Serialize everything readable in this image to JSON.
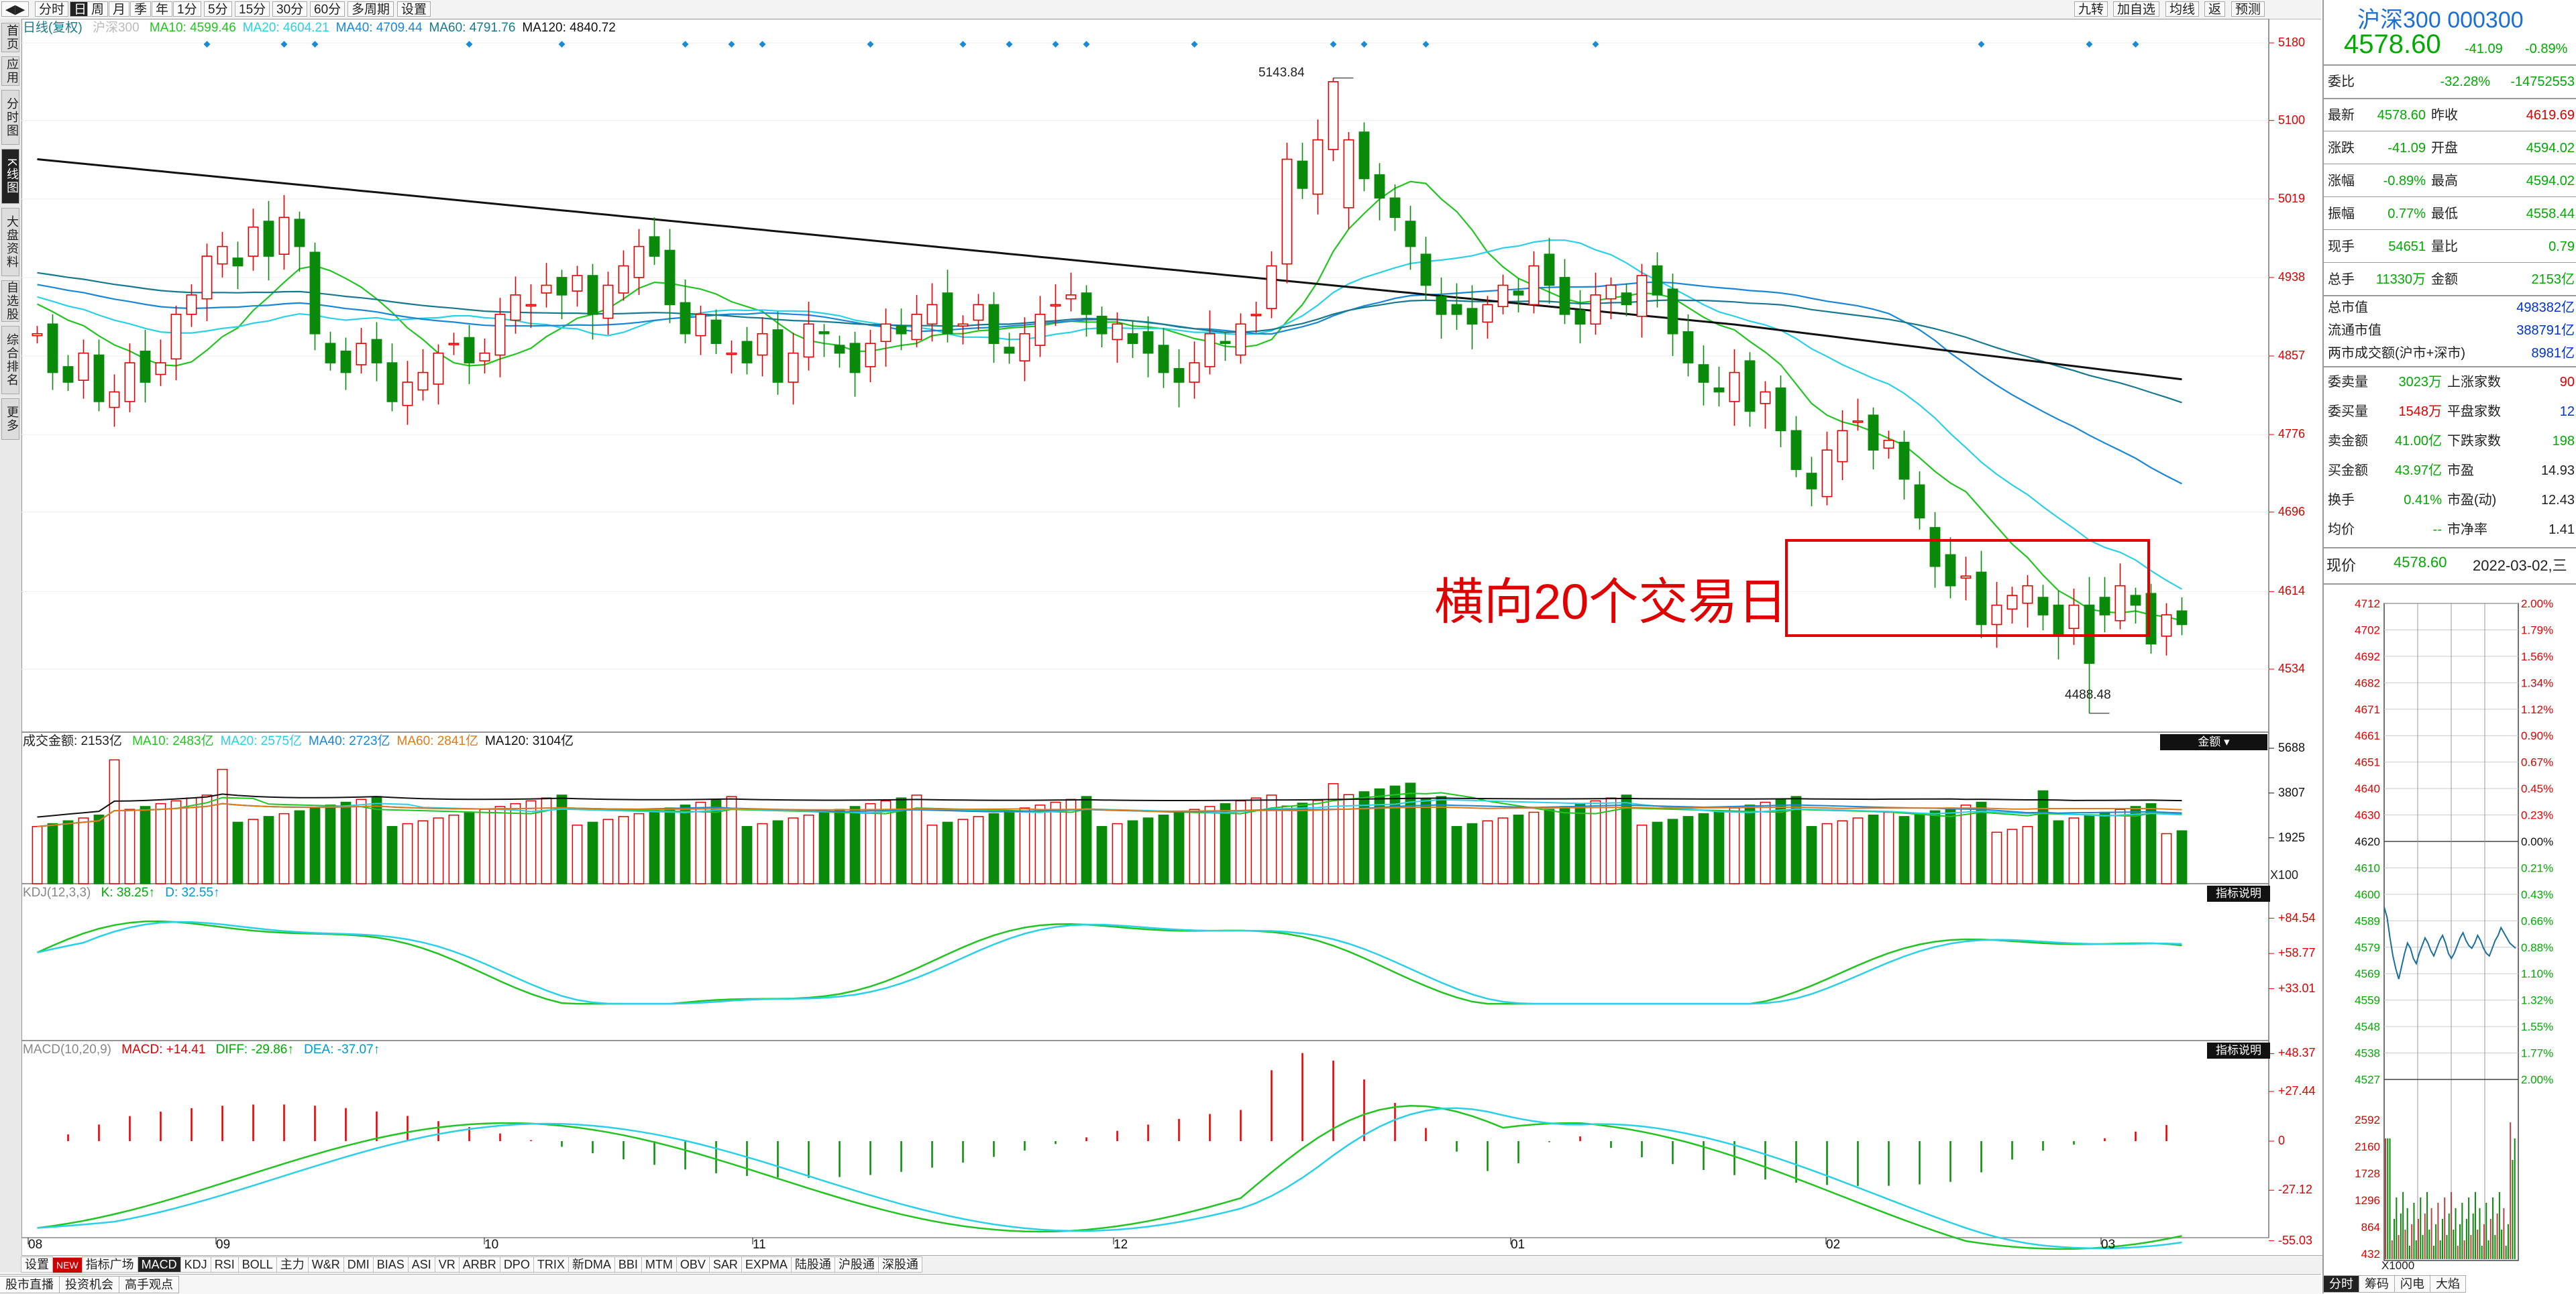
{
  "toolbar": {
    "nav_arrows": "◀▶",
    "periods": [
      "分时",
      "日",
      "周",
      "月",
      "季",
      "年",
      "1分",
      "5分",
      "15分",
      "30分",
      "60分",
      "多周期",
      "设置"
    ],
    "active_period": "日",
    "right_buttons": [
      "九转",
      "加自选",
      "均线",
      "返",
      "预测"
    ]
  },
  "left_nav": [
    "首页",
    "应用",
    "分时图",
    "K线图",
    "大盘资料",
    "自选股",
    "综合排名",
    "更多"
  ],
  "left_nav_active": "K线图",
  "kline": {
    "title": "日线(复权)",
    "name": "沪深300",
    "ma": [
      {
        "label": "MA10: 4599.46",
        "color": "#22c422"
      },
      {
        "label": "MA20: 4604.21",
        "color": "#2ad0e6"
      },
      {
        "label": "MA40: 4709.44",
        "color": "#1a86d6"
      },
      {
        "label": "MA60: 4791.76",
        "color": "#17788e"
      },
      {
        "label": "MA120: 4840.72",
        "color": "#111111"
      }
    ],
    "y_ticks": [
      "5180",
      "5100",
      "5019",
      "4938",
      "4857",
      "4776",
      "4696",
      "4614",
      "4534"
    ],
    "high_label": "5143.84",
    "low_label": "4488.48",
    "annotation": "横向20个交易日"
  },
  "volume": {
    "title": "成交金额: 2153亿",
    "ma": [
      {
        "label": "MA10: 2483亿",
        "color": "#22c422"
      },
      {
        "label": "MA20: 2575亿",
        "color": "#2ad0e6"
      },
      {
        "label": "MA40: 2723亿",
        "color": "#1a86d6"
      },
      {
        "label": "MA60: 2841亿",
        "color": "#e07a1a"
      },
      {
        "label": "MA120: 3104亿",
        "color": "#111111"
      }
    ],
    "y_ticks": [
      "5688",
      "3807",
      "1925"
    ],
    "unit": "X100",
    "selector": "金额"
  },
  "kdj": {
    "title": "KDJ(12,3,3)",
    "k": "K: 38.25↑",
    "d": "D: 32.55↑",
    "y_ticks": [
      "+84.54",
      "+58.77",
      "+33.01"
    ],
    "button": "指标说明"
  },
  "macd": {
    "title": "MACD(10,20,9)",
    "macd": "MACD: +14.41",
    "diff": "DIFF: -29.86↑",
    "dea": "DEA: -37.07↑",
    "y_ticks": [
      "+48.37",
      "+27.44",
      "0",
      "-27.12",
      "-55.03"
    ],
    "button": "指标说明"
  },
  "x_labels": [
    "08",
    "09",
    "10",
    "11",
    "12",
    "01",
    "02",
    "03"
  ],
  "indicator_tabs": [
    "设置",
    "NEW",
    "指标广场",
    "MACD",
    "KDJ",
    "RSI",
    "BOLL",
    "主力",
    "W&R",
    "DMI",
    "BIAS",
    "ASI",
    "VR",
    "ARBR",
    "DPO",
    "TRIX",
    "新DMA",
    "BBI",
    "MTM",
    "OBV",
    "SAR",
    "EXPMA",
    "陆股通",
    "沪股通",
    "深股通"
  ],
  "active_indicator": "MACD",
  "bottom_tabs": [
    "股市直播",
    "投资机会",
    "高手观点"
  ],
  "quote": {
    "name": "沪深300",
    "code": "000300",
    "price": "4578.60",
    "change": "-41.09",
    "change_pct": "-0.89%",
    "ratio_rows": [
      [
        "委比",
        "-32.28%",
        "-14752553"
      ]
    ],
    "rows_a": [
      [
        "最新",
        "4578.60",
        "昨收",
        "4619.69"
      ],
      [
        "涨跌",
        "-41.09",
        "开盘",
        "4594.02"
      ],
      [
        "涨幅",
        "-0.89%",
        "最高",
        "4594.02"
      ],
      [
        "振幅",
        "0.77%",
        "最低",
        "4558.44"
      ],
      [
        "现手",
        "54651",
        "量比",
        "0.79"
      ],
      [
        "总手",
        "11330万",
        "金额",
        "2153亿"
      ]
    ],
    "rows_b": [
      [
        "总市值",
        "498382亿"
      ],
      [
        "流通市值",
        "388791亿"
      ],
      [
        "两市成交额(沪市+深市)",
        "8981亿"
      ]
    ],
    "rows_c": [
      [
        "委卖量",
        "3023万",
        "上涨家数",
        "90"
      ],
      [
        "委买量",
        "1548万",
        "平盘家数",
        "12"
      ],
      [
        "卖金额",
        "41.00亿",
        "下跌家数",
        "198"
      ],
      [
        "买金额",
        "43.97亿",
        "市盈",
        "14.93"
      ],
      [
        "换手",
        "0.41%",
        "市盈(动)",
        "12.43"
      ],
      [
        "均价",
        "--",
        "市净率",
        "1.41"
      ]
    ],
    "now_label": "现价",
    "now_price": "4578.60",
    "now_date": "2022-03-02,三"
  },
  "mini": {
    "price_ticks": [
      "4712",
      "4702",
      "4692",
      "4682",
      "4671",
      "4661",
      "4651",
      "4640",
      "4630",
      "4620",
      "4610",
      "4600",
      "4589",
      "4579",
      "4569",
      "4559",
      "4548",
      "4538",
      "4527"
    ],
    "pct_ticks": [
      "2.00%",
      "1.79%",
      "1.56%",
      "1.34%",
      "1.12%",
      "0.90%",
      "0.67%",
      "0.45%",
      "0.23%",
      "0.00%",
      "0.21%",
      "0.43%",
      "0.66%",
      "0.88%",
      "1.10%",
      "1.32%",
      "1.55%",
      "1.77%",
      "2.00%"
    ],
    "vol_ticks": [
      "2592",
      "2160",
      "1728",
      "1296",
      "864",
      "432"
    ],
    "unit": "X1000",
    "tabs": [
      "分时",
      "筹码",
      "闪电",
      "大焰"
    ]
  },
  "colors": {
    "up": "#e00000",
    "down": "#0a8a0a",
    "annotation": "#e00000"
  }
}
